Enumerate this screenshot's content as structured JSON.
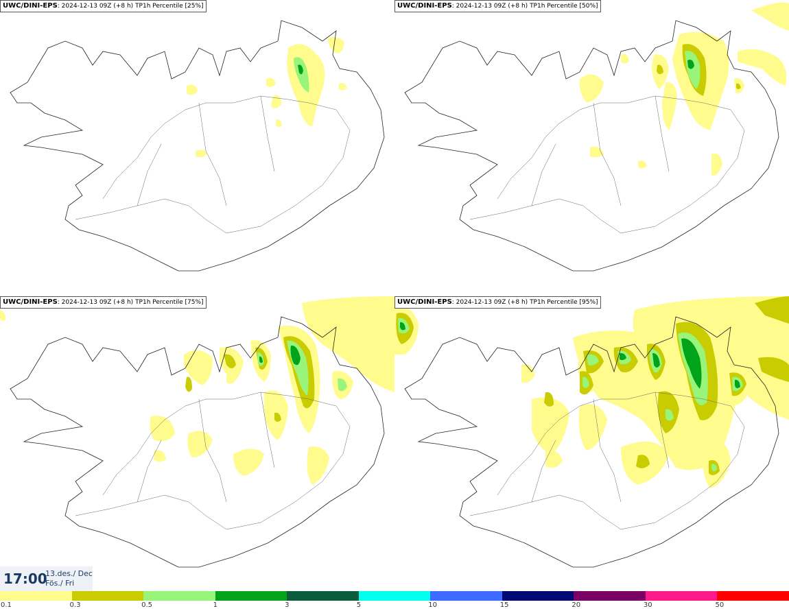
{
  "panels": [
    {
      "model": "UWC/DINI-EPS",
      "info": ": 2024-12-13 09Z",
      "lead": "(+8 h)",
      "field": "TP1h Percentile [25%]"
    },
    {
      "model": "UWC/DINI-EPS",
      "info": ": 2024-12-13 09Z",
      "lead": "(+8 h)",
      "field": "TP1h Percentile [50%]"
    },
    {
      "model": "UWC/DINI-EPS",
      "info": ": 2024-12-13 09Z",
      "lead": "(+8 h)",
      "field": "TP1h Percentile [75%]"
    },
    {
      "model": "UWC/DINI-EPS",
      "info": ": 2024-12-13 09Z",
      "lead": "(+8 h)",
      "field": "TP1h Percentile [95%]"
    }
  ],
  "valid_time": {
    "time": "17:00",
    "date_line1": "13.des./ Dec",
    "date_line2": "Fös./ Fri"
  },
  "legend": {
    "colors": [
      "#fffb8c",
      "#c9cc00",
      "#99f57a",
      "#00a31a",
      "#0a5c3d",
      "#00ffee",
      "#3d6bff",
      "#000a73",
      "#7a0066",
      "#ff1a8c",
      "#ff0000"
    ],
    "labels": [
      "0.1",
      "0.3",
      "0.5",
      "1",
      "3",
      "5",
      "10",
      "15",
      "20",
      "30",
      "50"
    ]
  }
}
